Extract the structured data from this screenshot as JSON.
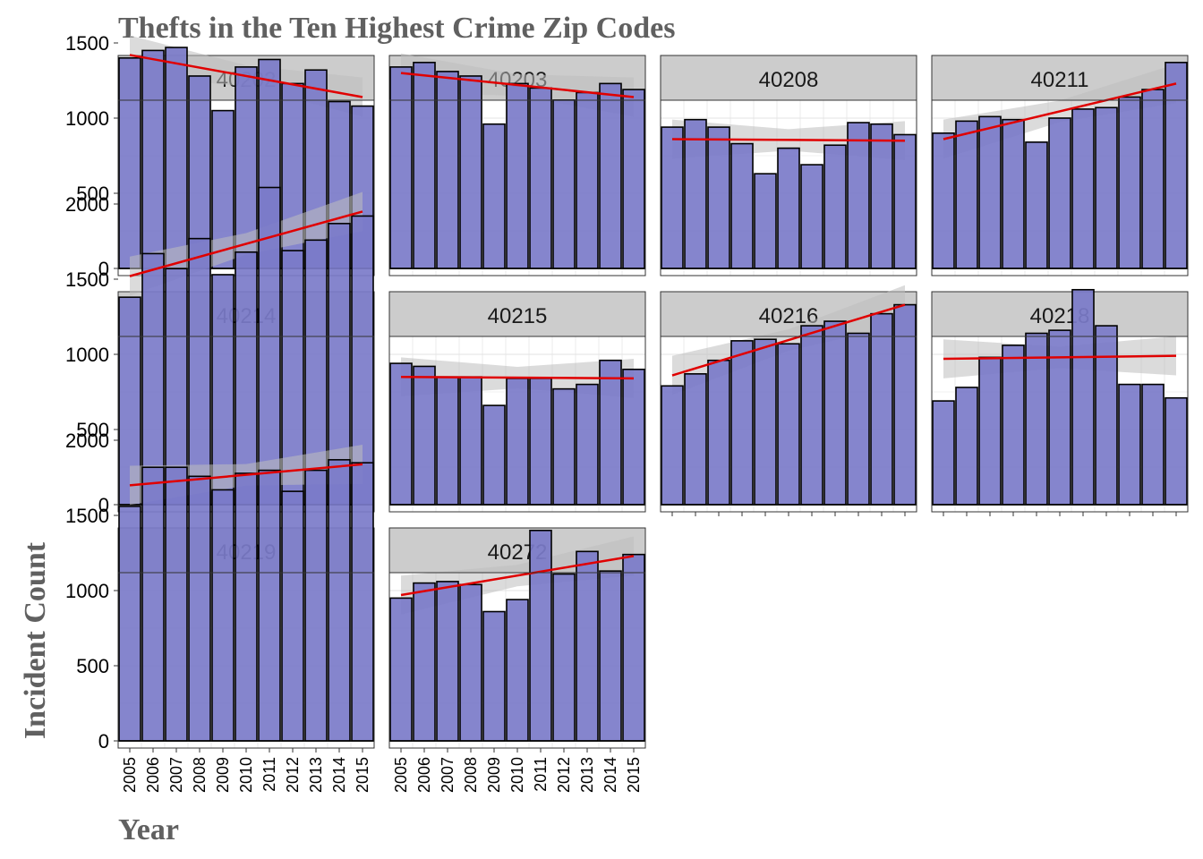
{
  "chart_data": {
    "type": "bar",
    "title": "Thefts in the Ten Highest Crime Zip Codes",
    "xlabel": "Year",
    "ylabel": "Incident Count",
    "ylim": [
      0,
      2000
    ],
    "yticks": [
      0,
      500,
      1000,
      1500,
      2000
    ],
    "x": [
      "2005",
      "2006",
      "2007",
      "2008",
      "2009",
      "2010",
      "2011",
      "2012",
      "2013",
      "2014",
      "2015"
    ],
    "grid": true,
    "facet_layout": "4 columns x 3 rows",
    "colors": {
      "bar_fill": "#7b7bc9",
      "bar_outline": "#000000",
      "trend_line": "#e00000",
      "confidence_band": "#bdbdbd",
      "strip_fill": "#cccccc",
      "title_text": "#606060"
    },
    "panels": [
      {
        "zip": "40202",
        "values": [
          1400,
          1450,
          1470,
          1280,
          1050,
          1340,
          1390,
          1230,
          1320,
          1110,
          1080
        ],
        "trend": [
          1420,
          1140
        ]
      },
      {
        "zip": "40203",
        "values": [
          1340,
          1370,
          1310,
          1280,
          960,
          1230,
          1200,
          1120,
          1170,
          1230,
          1190
        ],
        "trend": [
          1300,
          1140
        ]
      },
      {
        "zip": "40208",
        "values": [
          940,
          990,
          940,
          830,
          630,
          800,
          690,
          820,
          970,
          960,
          890
        ],
        "trend": [
          860,
          850
        ]
      },
      {
        "zip": "40211",
        "values": [
          900,
          980,
          1010,
          990,
          840,
          1000,
          1060,
          1070,
          1140,
          1190,
          1370
        ],
        "trend": [
          860,
          1230
        ]
      },
      {
        "zip": "40214",
        "values": [
          1380,
          1670,
          1570,
          1770,
          1530,
          1680,
          2110,
          1690,
          1760,
          1870,
          1920
        ],
        "trend": [
          1520,
          1950
        ]
      },
      {
        "zip": "40215",
        "values": [
          940,
          920,
          850,
          850,
          660,
          840,
          840,
          770,
          800,
          960,
          900
        ],
        "trend": [
          850,
          840
        ]
      },
      {
        "zip": "40216",
        "values": [
          790,
          870,
          960,
          1090,
          1100,
          1070,
          1190,
          1220,
          1140,
          1270,
          1330
        ],
        "trend": [
          860,
          1330
        ]
      },
      {
        "zip": "40218",
        "values": [
          690,
          780,
          980,
          1060,
          1140,
          1160,
          1430,
          1190,
          800,
          800,
          710
        ],
        "trend": [
          970,
          990
        ]
      },
      {
        "zip": "40219",
        "values": [
          1560,
          1820,
          1820,
          1760,
          1670,
          1780,
          1800,
          1660,
          1800,
          1870,
          1850
        ],
        "trend": [
          1700,
          1840
        ]
      },
      {
        "zip": "40272",
        "values": [
          950,
          1050,
          1060,
          1040,
          860,
          940,
          1400,
          1110,
          1260,
          1130,
          1240
        ],
        "trend": [
          970,
          1230
        ]
      }
    ]
  }
}
